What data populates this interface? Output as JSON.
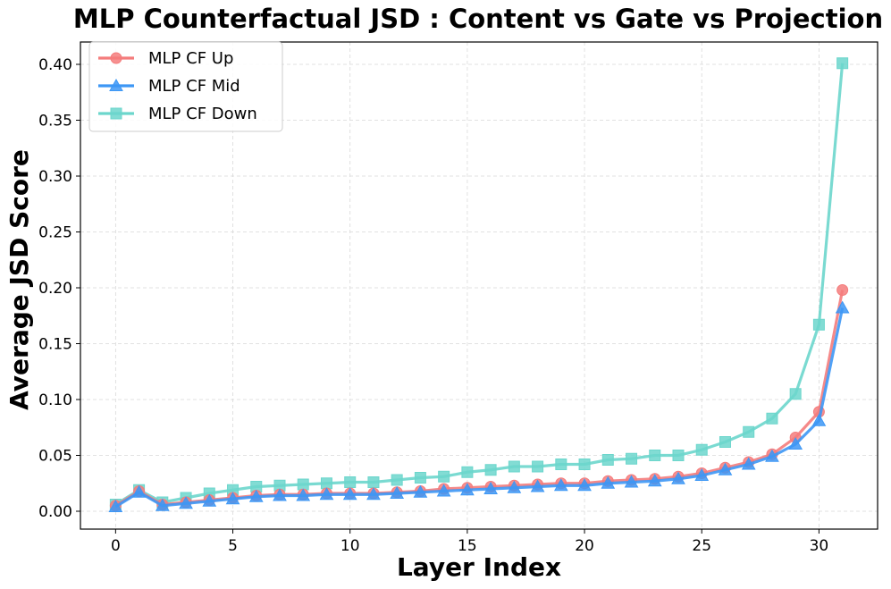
{
  "chart_data": {
    "type": "line",
    "title": "MLP Counterfactual JSD : Content vs Gate vs Projection",
    "xlabel": "Layer Index",
    "ylabel": "Average JSD Score",
    "xlim": [
      -1.5,
      32.5
    ],
    "ylim": [
      -0.016,
      0.42
    ],
    "xticks": [
      0,
      5,
      10,
      15,
      20,
      25,
      30
    ],
    "xtick_labels": [
      "0",
      "5",
      "10",
      "15",
      "20",
      "25",
      "30"
    ],
    "yticks": [
      0.0,
      0.05,
      0.1,
      0.15,
      0.2,
      0.25,
      0.3,
      0.35,
      0.4
    ],
    "ytick_labels": [
      "0.00",
      "0.05",
      "0.10",
      "0.15",
      "0.20",
      "0.25",
      "0.30",
      "0.35",
      "0.40"
    ],
    "grid": true,
    "legend_position": "top-left",
    "x": [
      0,
      1,
      2,
      3,
      4,
      5,
      6,
      7,
      8,
      9,
      10,
      11,
      12,
      13,
      14,
      15,
      16,
      17,
      18,
      19,
      20,
      21,
      22,
      23,
      24,
      25,
      26,
      27,
      28,
      29,
      30,
      31
    ],
    "series": [
      {
        "name": "MLP CF Up",
        "color": "#f47c7c",
        "marker": "circle",
        "values": [
          0.005,
          0.018,
          0.006,
          0.008,
          0.01,
          0.012,
          0.014,
          0.015,
          0.015,
          0.016,
          0.016,
          0.016,
          0.017,
          0.018,
          0.02,
          0.021,
          0.022,
          0.023,
          0.024,
          0.025,
          0.025,
          0.027,
          0.028,
          0.029,
          0.031,
          0.034,
          0.039,
          0.044,
          0.051,
          0.066,
          0.089,
          0.198
        ]
      },
      {
        "name": "MLP CF Mid",
        "color": "#3d97f5",
        "marker": "triangle",
        "values": [
          0.004,
          0.017,
          0.005,
          0.007,
          0.009,
          0.011,
          0.013,
          0.014,
          0.014,
          0.015,
          0.015,
          0.015,
          0.016,
          0.017,
          0.018,
          0.019,
          0.02,
          0.021,
          0.022,
          0.023,
          0.023,
          0.025,
          0.026,
          0.027,
          0.029,
          0.032,
          0.037,
          0.042,
          0.049,
          0.06,
          0.081,
          0.182
        ]
      },
      {
        "name": "MLP CF Down",
        "color": "#6cd6cc",
        "marker": "square",
        "values": [
          0.006,
          0.019,
          0.008,
          0.012,
          0.016,
          0.019,
          0.022,
          0.023,
          0.024,
          0.025,
          0.026,
          0.026,
          0.028,
          0.03,
          0.031,
          0.035,
          0.037,
          0.04,
          0.04,
          0.042,
          0.042,
          0.046,
          0.047,
          0.05,
          0.05,
          0.055,
          0.062,
          0.071,
          0.083,
          0.105,
          0.167,
          0.401
        ]
      }
    ]
  }
}
